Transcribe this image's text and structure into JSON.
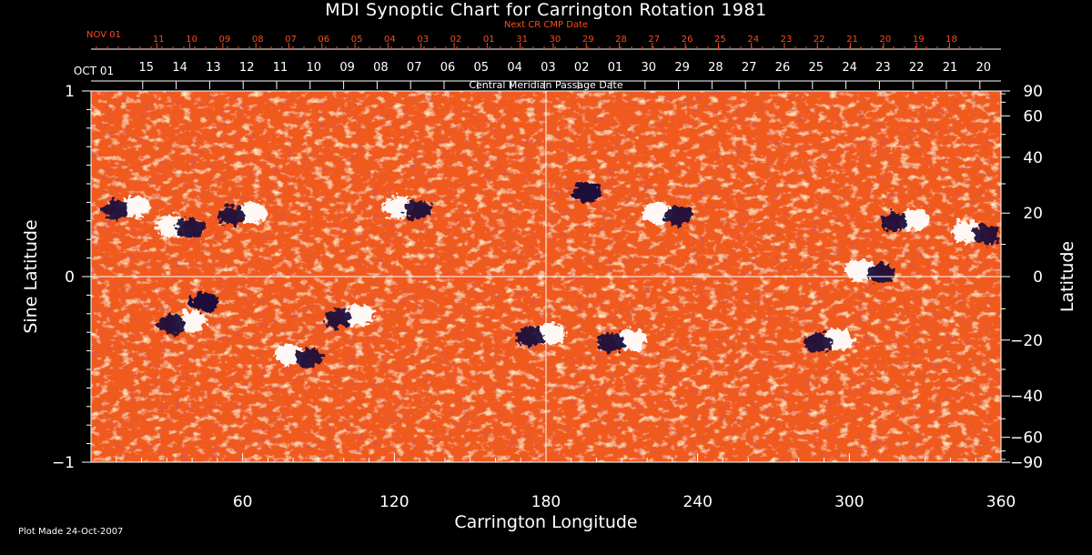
{
  "chart_data": {
    "type": "heatmap",
    "title": "MDI Synoptic Chart for Carrington Rotation 1981",
    "top_axis_next_label": "Next CR CMP Date",
    "top_axis_label": "Central Meridian Passage Date",
    "xlabel": "Carrington Longitude",
    "ylabel_left": "Sine Latitude",
    "ylabel_right": "Latitude",
    "xlim": [
      0,
      360
    ],
    "ylim": [
      -1,
      1
    ],
    "x_ticks": [
      60,
      120,
      180,
      240,
      300,
      360
    ],
    "y_left_ticks": [
      {
        "value": 1,
        "label": "1"
      },
      {
        "value": 0,
        "label": "0"
      },
      {
        "value": -1,
        "label": "−1"
      }
    ],
    "y_right_ticks": [
      90,
      60,
      40,
      20,
      0,
      -20,
      -40,
      -60,
      -90
    ],
    "y_right_tick_labels": [
      "90",
      "60",
      "40",
      "20",
      "0",
      "−20",
      "−40",
      "−60",
      "−90"
    ],
    "cmp_dates": [
      "OCT 01",
      "15",
      "14",
      "13",
      "12",
      "11",
      "10",
      "09",
      "08",
      "07",
      "06",
      "05",
      "04",
      "03",
      "02",
      "01",
      "30",
      "29",
      "28",
      "27",
      "26",
      "25",
      "24",
      "23",
      "22",
      "21",
      "20"
    ],
    "next_cmp_dates": [
      "NOV 01",
      "11",
      "10",
      "09",
      "08",
      "07",
      "06",
      "05",
      "04",
      "03",
      "02",
      "01",
      "31",
      "30",
      "29",
      "28",
      "27",
      "26",
      "25",
      "24",
      "23",
      "22",
      "21",
      "20",
      "19",
      "18"
    ],
    "grid": "crosshair at longitude 180 and latitude 0",
    "colors": {
      "background": "#000000",
      "field_base": "#f05a1a",
      "positive_polarity": "#ffffff",
      "negative_polarity": "#1a0e3a",
      "next_cmp_text": "#ff4a1a"
    },
    "active_regions": [
      {
        "lon": 14,
        "lat": 22,
        "polarity": "mixed"
      },
      {
        "lon": 35,
        "lat": 16,
        "polarity": "mixed"
      },
      {
        "lon": 36,
        "lat": -14,
        "polarity": "mixed"
      },
      {
        "lon": 45,
        "lat": -8,
        "polarity": "negative"
      },
      {
        "lon": 60,
        "lat": 20,
        "polarity": "mixed"
      },
      {
        "lon": 82,
        "lat": -25,
        "polarity": "mixed"
      },
      {
        "lon": 102,
        "lat": -12,
        "polarity": "mixed"
      },
      {
        "lon": 125,
        "lat": 22,
        "polarity": "mixed"
      },
      {
        "lon": 178,
        "lat": -18,
        "polarity": "mixed"
      },
      {
        "lon": 196,
        "lat": 27,
        "polarity": "negative"
      },
      {
        "lon": 210,
        "lat": -20,
        "polarity": "mixed"
      },
      {
        "lon": 228,
        "lat": 20,
        "polarity": "mixed"
      },
      {
        "lon": 292,
        "lat": -20,
        "polarity": "mixed"
      },
      {
        "lon": 308,
        "lat": 2,
        "polarity": "mixed"
      },
      {
        "lon": 322,
        "lat": 18,
        "polarity": "mixed"
      },
      {
        "lon": 350,
        "lat": 14,
        "polarity": "mixed"
      }
    ]
  },
  "footer": "Plot Made 24-Oct-2007"
}
